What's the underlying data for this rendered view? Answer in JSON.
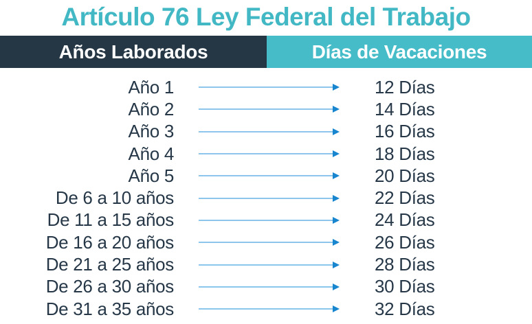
{
  "title": "Artículo 76 Ley Federal del Trabajo",
  "headers": {
    "years": "Años Laborados",
    "days": "Días de Vacaciones"
  },
  "rows": [
    {
      "years": "Año 1",
      "days": "12 Días"
    },
    {
      "years": "Año 2",
      "days": "14 Días"
    },
    {
      "years": "Año 3",
      "days": "16 Días"
    },
    {
      "years": "Año 4",
      "days": "18 Días"
    },
    {
      "years": "Año 5",
      "days": "20 Días"
    },
    {
      "years": "De 6 a 10 años",
      "days": "22 Días"
    },
    {
      "years": "De 11 a 15 años",
      "days": "24 Días"
    },
    {
      "years": "De 16 a 20 años",
      "days": "26 Días"
    },
    {
      "years": "De 21 a 25 años",
      "days": "28 Días"
    },
    {
      "years": "De 26 a 30 años",
      "days": "30 Días"
    },
    {
      "years": "De 31 a 35 años",
      "days": "32 Días"
    }
  ],
  "colors": {
    "title_teal": "#43b8c5",
    "header_dark_bg": "#253645",
    "header_teal_bg": "#46bcc9",
    "row_text": "#263848",
    "arrow_line": "#8cc6ec",
    "arrow_head": "#1786ce"
  },
  "chart_data": {
    "type": "table",
    "title": "Artículo 76 Ley Federal del Trabajo",
    "columns": [
      "Años Laborados",
      "Días de Vacaciones"
    ],
    "rows": [
      [
        "Año 1",
        "12 Días"
      ],
      [
        "Año 2",
        "14 Días"
      ],
      [
        "Año 3",
        "16 Días"
      ],
      [
        "Año 4",
        "18 Días"
      ],
      [
        "Año 5",
        "20 Días"
      ],
      [
        "De 6 a 10 años",
        "22 Días"
      ],
      [
        "De 11 a 15 años",
        "24 Días"
      ],
      [
        "De 16 a 20 años",
        "26 Días"
      ],
      [
        "De 21 a 25 años",
        "28 Días"
      ],
      [
        "De 26 a 30 años",
        "30 Días"
      ],
      [
        "De 31 a 35 años",
        "32 Días"
      ]
    ],
    "values_numeric": [
      12,
      14,
      16,
      18,
      20,
      22,
      24,
      26,
      28,
      30,
      32
    ]
  }
}
